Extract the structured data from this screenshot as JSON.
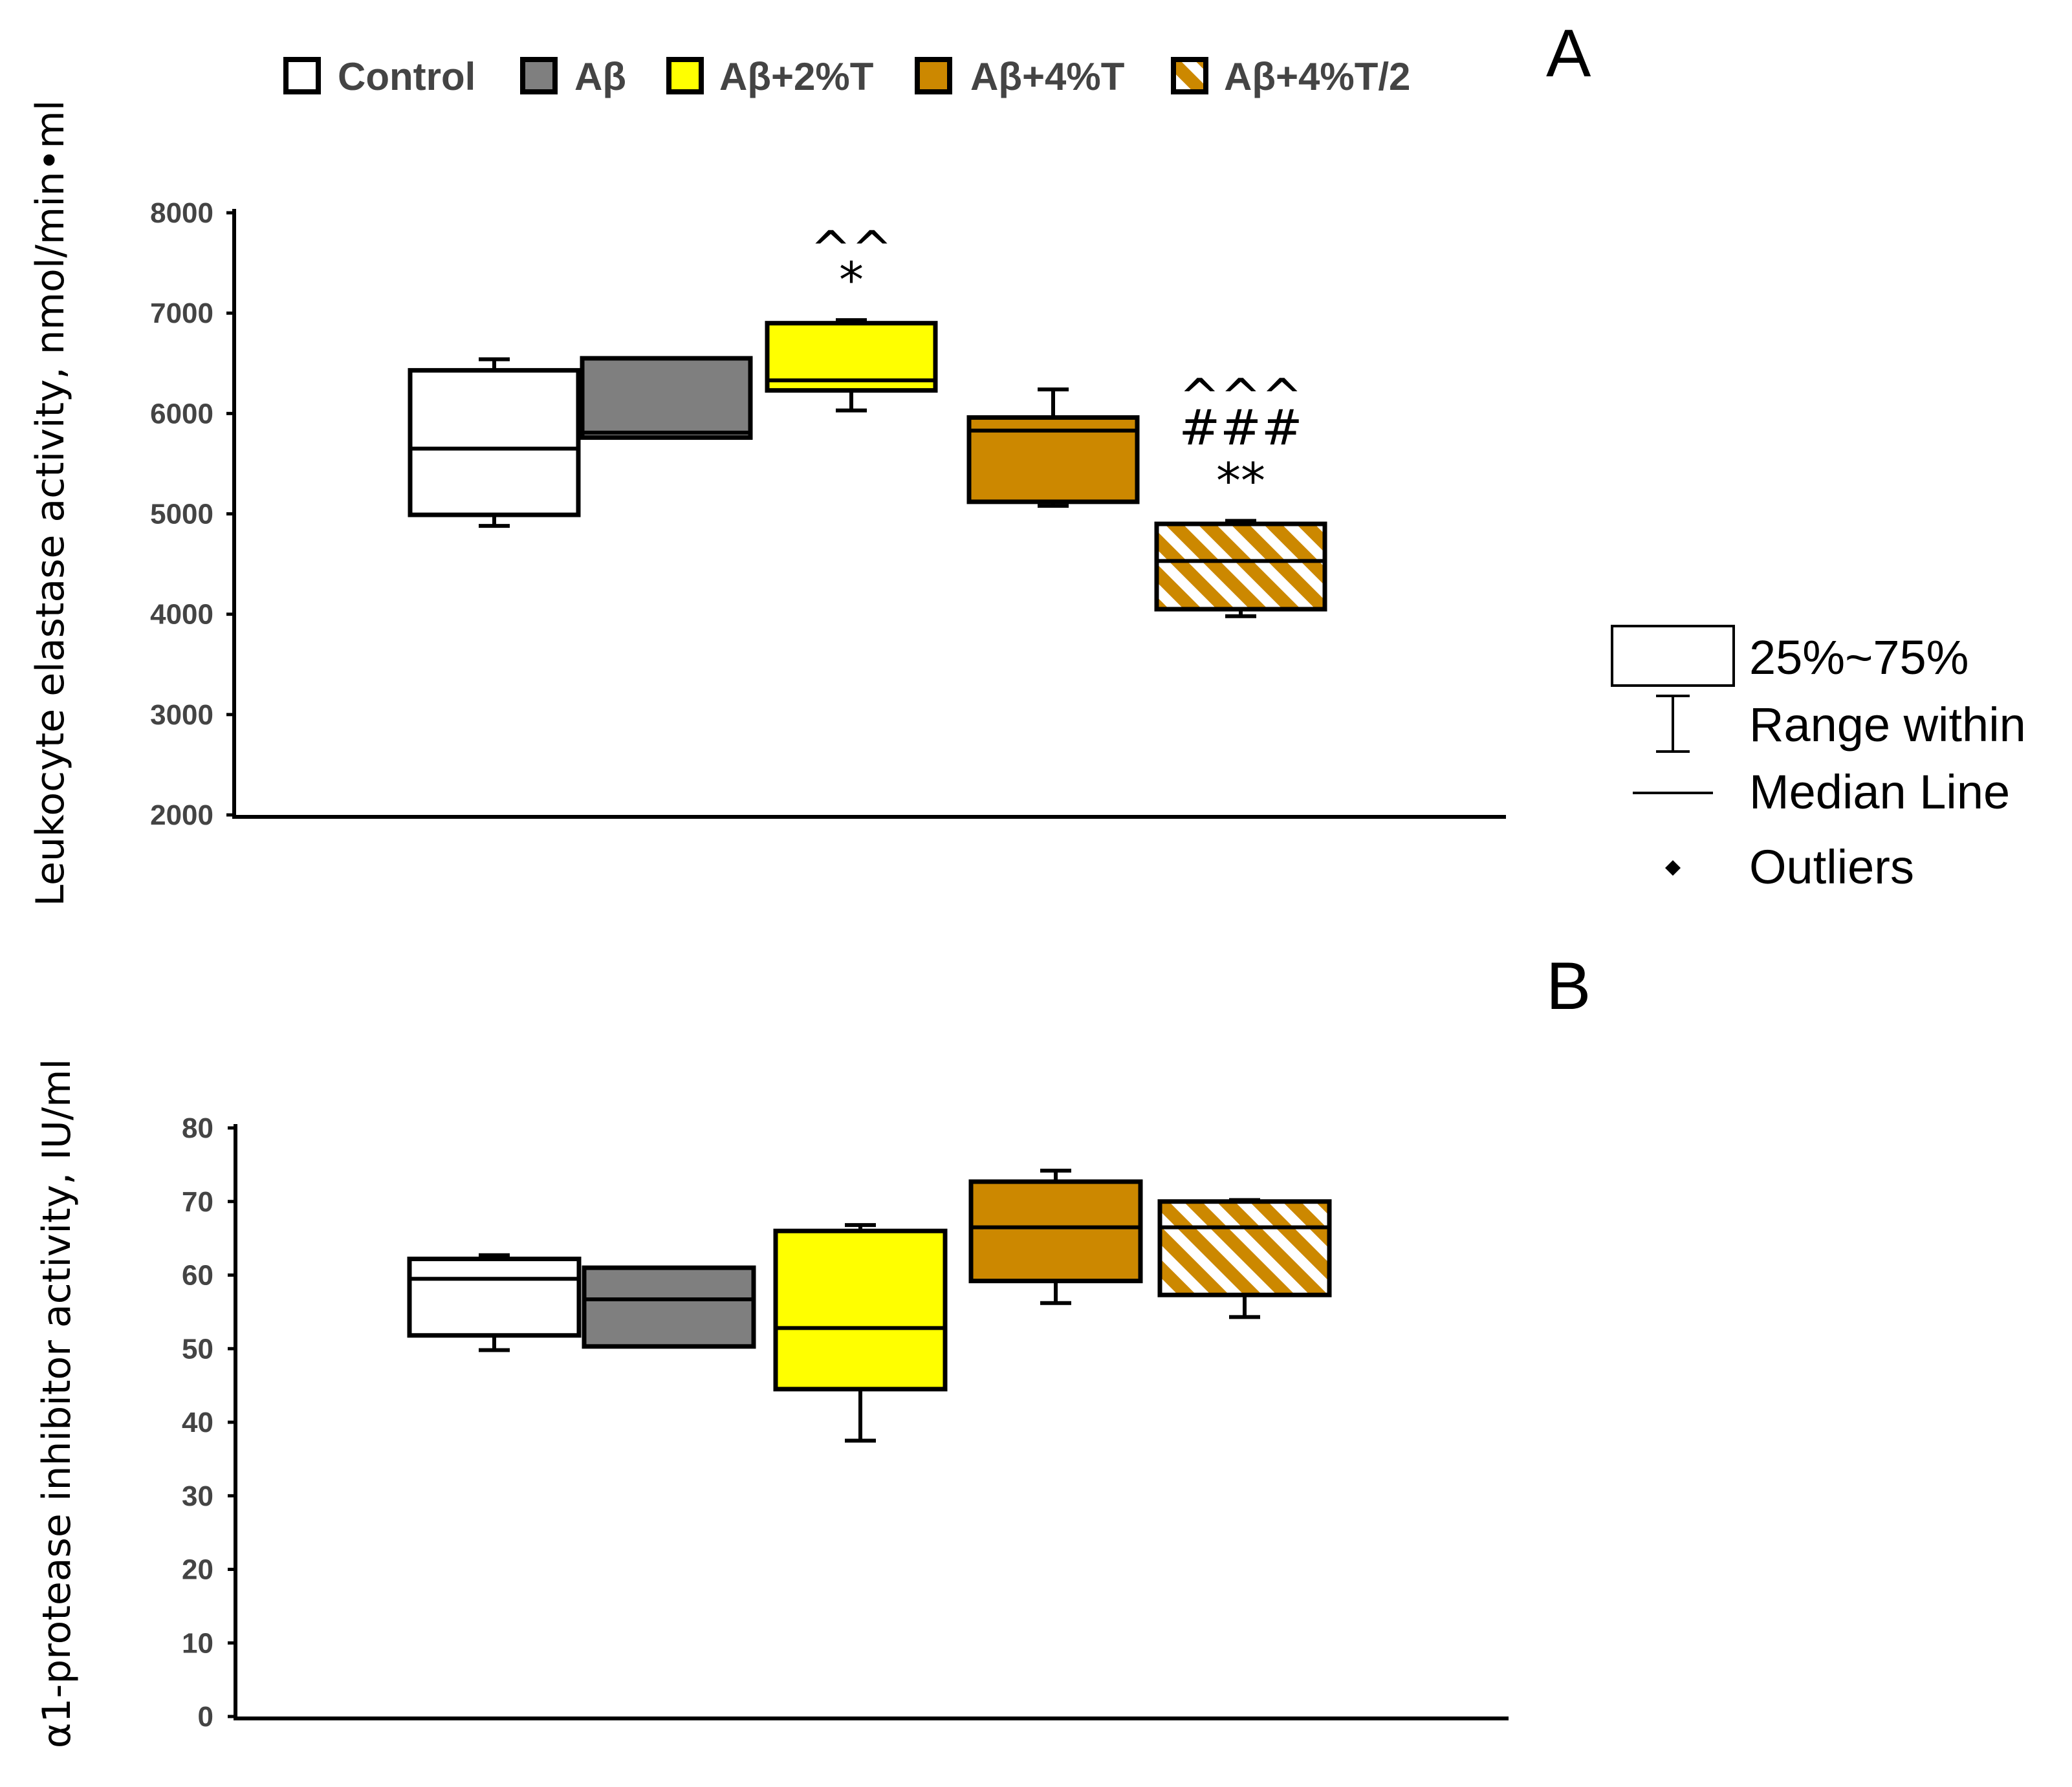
{
  "legend": [
    {
      "label": "Control",
      "fill": "#ffffff",
      "hatch": false
    },
    {
      "label": "Aβ",
      "fill": "#7f7f7f",
      "hatch": false
    },
    {
      "label": "Aβ+2%T",
      "fill": "#ffff00",
      "hatch": false
    },
    {
      "label": "Aβ+4%T",
      "fill": "#cc8800",
      "hatch": false
    },
    {
      "label": "Aβ+4%T/2",
      "fill": "#cc8800",
      "hatch": true
    }
  ],
  "box_key": {
    "box_label": "25%~75%",
    "whisker_label": "Range within",
    "median_label": "Median Line",
    "outlier_label": "Outliers"
  },
  "chart_data": [
    {
      "panel": "A",
      "type": "box",
      "ylabel": "Leukocyte elastase activity, nmol/min•ml",
      "ylim": [
        2000,
        8000
      ],
      "yticks": [
        2000,
        3000,
        4000,
        5000,
        6000,
        7000,
        8000
      ],
      "groups": [
        {
          "name": "Control",
          "min": 4880,
          "q1": 4990,
          "median": 5650,
          "q3": 6430,
          "max": 6540,
          "annotations": []
        },
        {
          "name": "Aβ",
          "min": 5760,
          "q1": 5760,
          "median": 5810,
          "q3": 6550,
          "max": 6550,
          "annotations": []
        },
        {
          "name": "Aβ+2%T",
          "min": 6030,
          "q1": 6230,
          "median": 6330,
          "q3": 6900,
          "max": 6930,
          "annotations": [
            "^^",
            "*"
          ]
        },
        {
          "name": "Aβ+4%T",
          "min": 5080,
          "q1": 5120,
          "median": 5830,
          "q3": 5960,
          "max": 6240,
          "annotations": []
        },
        {
          "name": "Aβ+4%T/2",
          "min": 3980,
          "q1": 4050,
          "median": 4530,
          "q3": 4900,
          "max": 4930,
          "annotations": [
            "^^^",
            "###",
            "**"
          ]
        }
      ]
    },
    {
      "panel": "B",
      "type": "box",
      "ylabel": "α1-protease inhibitor activity, IU/ml",
      "ylim": [
        0,
        80
      ],
      "yticks": [
        0,
        10,
        20,
        30,
        40,
        50,
        60,
        70,
        80
      ],
      "groups": [
        {
          "name": "Control",
          "min": 49.8,
          "q1": 51.8,
          "median": 59.5,
          "q3": 62.2,
          "max": 62.7,
          "annotations": []
        },
        {
          "name": "Aβ",
          "min": 50.3,
          "q1": 50.3,
          "median": 56.7,
          "q3": 61.0,
          "max": 61.0,
          "annotations": []
        },
        {
          "name": "Aβ+2%T",
          "min": 37.5,
          "q1": 44.5,
          "median": 52.8,
          "q3": 66.0,
          "max": 66.8,
          "annotations": []
        },
        {
          "name": "Aβ+4%T",
          "min": 56.2,
          "q1": 59.2,
          "median": 66.5,
          "q3": 72.7,
          "max": 74.2,
          "annotations": []
        },
        {
          "name": "Aβ+4%T/2",
          "min": 54.3,
          "q1": 57.3,
          "median": 66.5,
          "q3": 70.0,
          "max": 70.2,
          "annotations": []
        }
      ]
    }
  ]
}
